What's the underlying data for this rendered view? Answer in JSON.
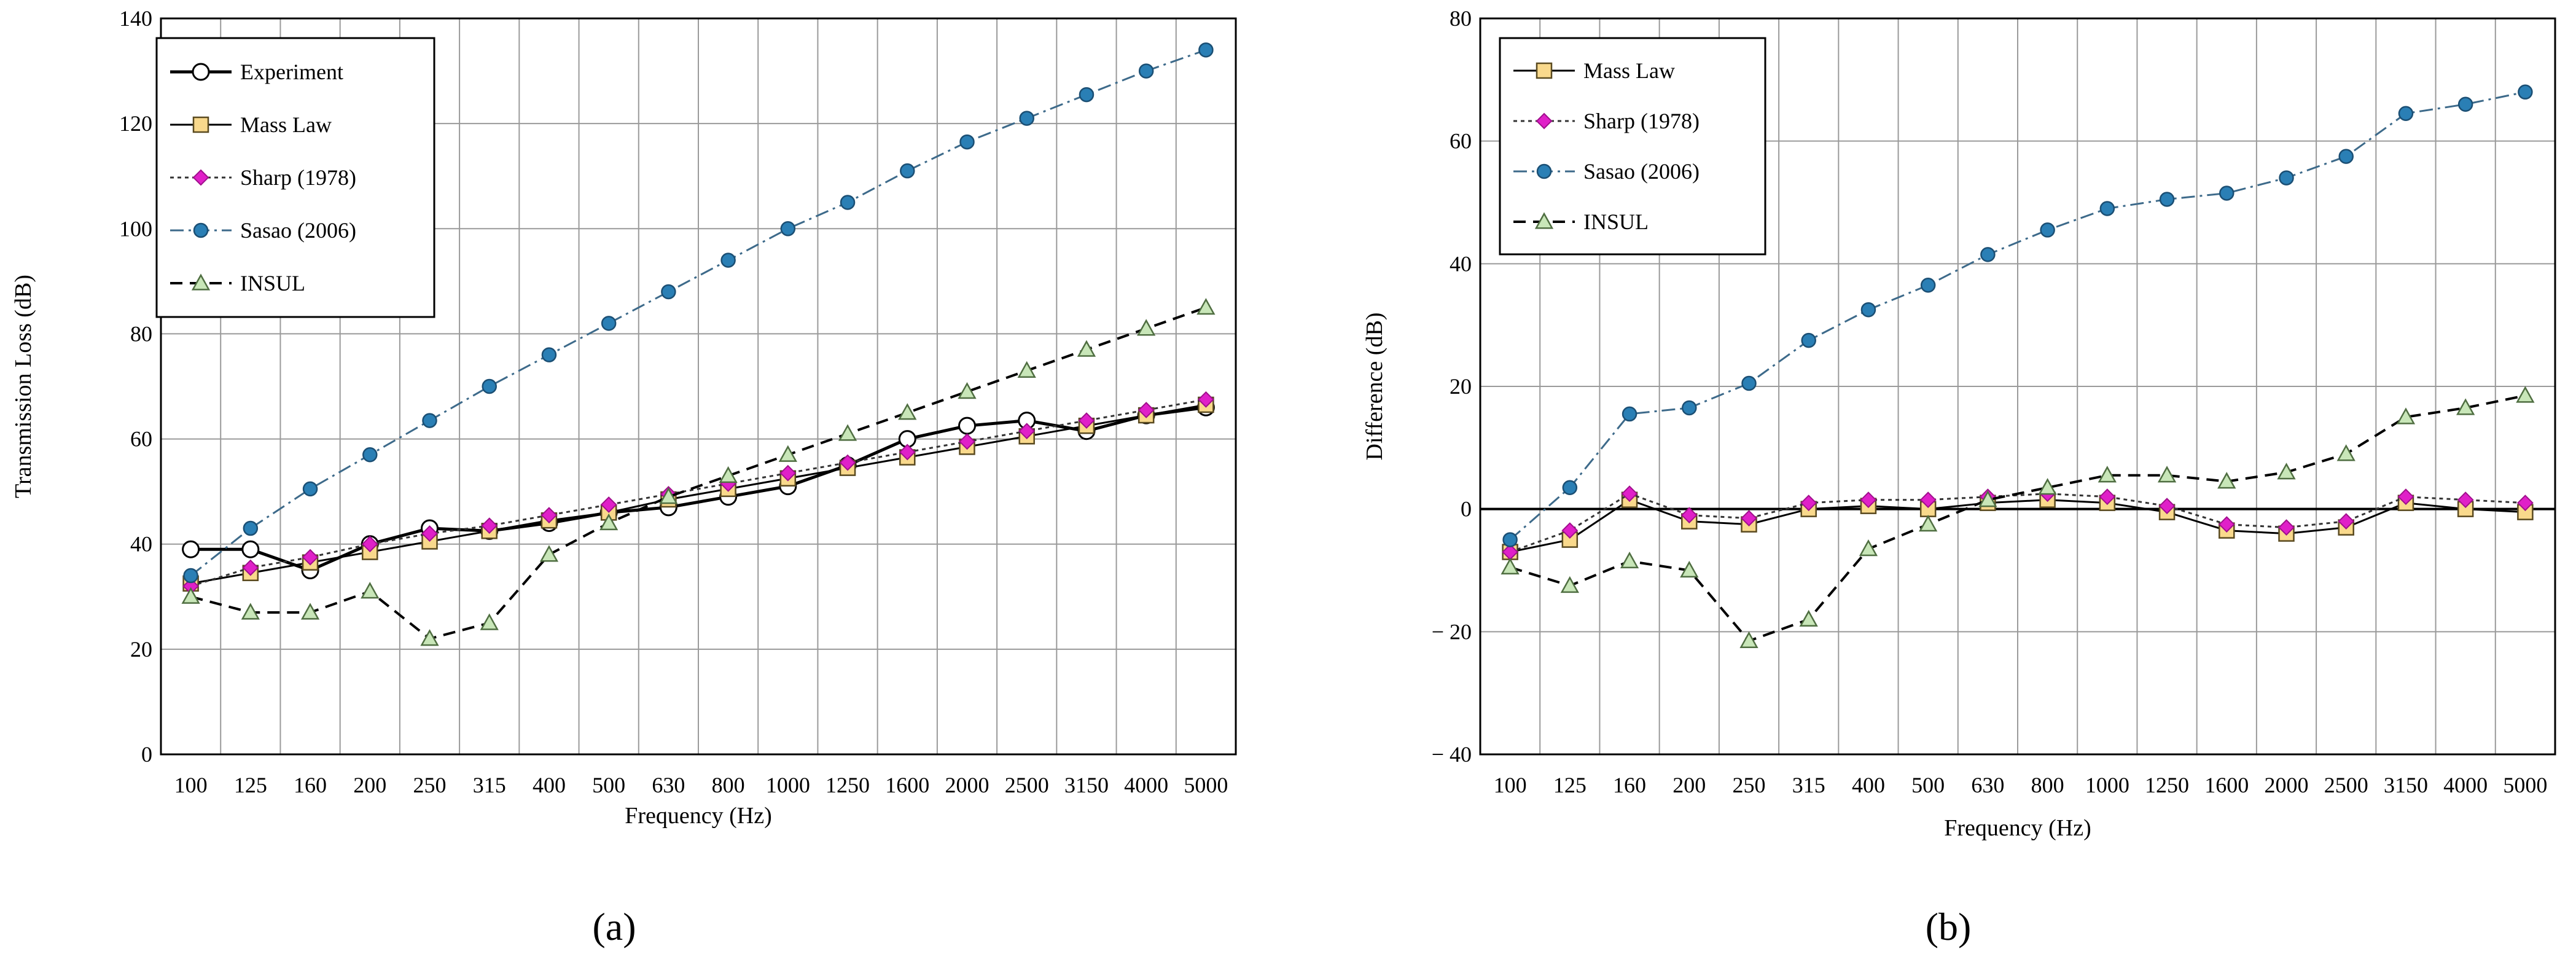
{
  "chart_data": [
    {
      "panel_label": "(a)",
      "type": "line",
      "xlabel": "Frequency (Hz)",
      "ylabel": "Transmission Loss (dB)",
      "ylim": [
        0,
        140
      ],
      "yticks": [
        0,
        20,
        40,
        60,
        80,
        100,
        120,
        140
      ],
      "ytick_labels": [
        "0",
        "20",
        "40",
        "60",
        "80",
        "100",
        "120",
        "140"
      ],
      "categories": [
        "100",
        "125",
        "160",
        "200",
        "250",
        "315",
        "400",
        "500",
        "630",
        "800",
        "1000",
        "1250",
        "1600",
        "2000",
        "2500",
        "3150",
        "4000",
        "5000"
      ],
      "grid": true,
      "legend_position": "top-left",
      "series": [
        {
          "name": "Experiment",
          "style": "experiment",
          "values": [
            39,
            39,
            35,
            40,
            43,
            42.5,
            44,
            46,
            47,
            49,
            51,
            55,
            60,
            62.5,
            63.5,
            61.5,
            64.5,
            66
          ]
        },
        {
          "name": "Mass Law",
          "style": "masslaw",
          "values": [
            32.5,
            34.5,
            36.5,
            38.5,
            40.5,
            42.5,
            44.5,
            46,
            48.5,
            50.5,
            52.5,
            54.5,
            56.5,
            58.5,
            60.5,
            62.5,
            64.5,
            66.5
          ]
        },
        {
          "name": "Sharp (1978)",
          "style": "sharp",
          "values": [
            32,
            35.5,
            37.5,
            40,
            42,
            43.5,
            45.5,
            47.5,
            49.5,
            51.5,
            53.5,
            55.5,
            57.5,
            59.5,
            61.5,
            63.5,
            65.5,
            67.5
          ]
        },
        {
          "name": "Sasao (2006)",
          "style": "sasao",
          "values": [
            34,
            43,
            50.5,
            57,
            63.5,
            70,
            76,
            82,
            88,
            94,
            100,
            105,
            111,
            116.5,
            121,
            125.5,
            130,
            134
          ]
        },
        {
          "name": "INSUL",
          "style": "insul",
          "values": [
            30,
            27,
            27,
            31,
            22,
            25,
            38,
            44,
            49,
            53,
            57,
            61,
            65,
            69,
            73,
            77,
            81,
            85
          ]
        }
      ]
    },
    {
      "panel_label": "(b)",
      "type": "line",
      "xlabel": "Frequency (Hz)",
      "ylabel": "Difference (dB)",
      "ylim": [
        -40,
        80
      ],
      "yticks": [
        -40,
        -20,
        0,
        20,
        40,
        60,
        80
      ],
      "ytick_labels": [
        "− 40",
        "− 20",
        "0",
        "20",
        "40",
        "60",
        "80"
      ],
      "categories": [
        "100",
        "125",
        "160",
        "200",
        "250",
        "315",
        "400",
        "500",
        "630",
        "800",
        "1000",
        "1250",
        "1600",
        "2000",
        "2500",
        "3150",
        "4000",
        "5000"
      ],
      "grid": true,
      "legend_position": "top-left",
      "series": [
        {
          "name": "Mass Law",
          "style": "masslaw",
          "values": [
            -7,
            -5,
            1.5,
            -2,
            -2.5,
            0,
            0.5,
            0,
            1,
            1.5,
            1,
            -0.5,
            -3.5,
            -4,
            -3,
            1,
            0,
            -0.5
          ]
        },
        {
          "name": "Sharp (1978)",
          "style": "sharp",
          "values": [
            -7,
            -3.5,
            2.5,
            -1,
            -1.5,
            1,
            1.5,
            1.5,
            2,
            2.5,
            2,
            0.5,
            -2.5,
            -3,
            -2,
            2,
            1.5,
            1
          ]
        },
        {
          "name": "Sasao (2006)",
          "style": "sasao",
          "values": [
            -5,
            3.5,
            15.5,
            16.5,
            20.5,
            27.5,
            32.5,
            36.5,
            41.5,
            45.5,
            49,
            50.5,
            51.5,
            54,
            57.5,
            64.5,
            66,
            68
          ]
        },
        {
          "name": "INSUL",
          "style": "insul",
          "values": [
            -9.5,
            -12.5,
            -8.5,
            -10,
            -21.5,
            -18,
            -6.5,
            -2.5,
            1.5,
            3.5,
            5.5,
            5.5,
            4.5,
            6,
            9,
            15,
            16.5,
            18.5
          ]
        }
      ]
    }
  ]
}
